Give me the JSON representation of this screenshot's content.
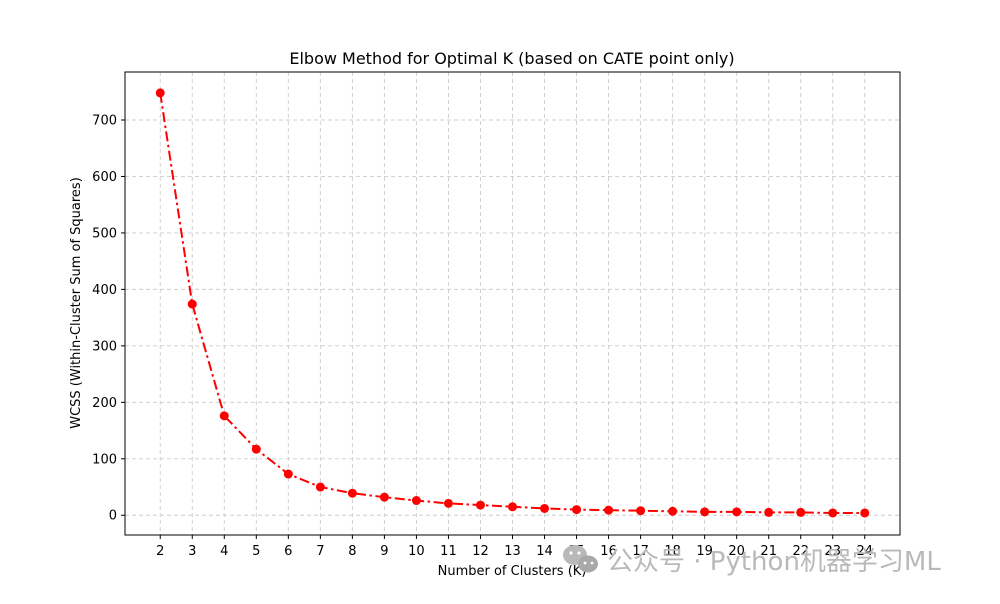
{
  "chart_data": {
    "type": "line",
    "title": "Elbow Method for Optimal K (based on CATE point only)",
    "xlabel": "Number of Clusters (K)",
    "ylabel": "WCSS (Within-Cluster Sum of Squares)",
    "x": [
      2,
      3,
      4,
      5,
      6,
      7,
      8,
      9,
      10,
      11,
      12,
      13,
      14,
      15,
      16,
      17,
      18,
      19,
      20,
      21,
      22,
      23,
      24
    ],
    "x_ticks": [
      2,
      3,
      4,
      5,
      6,
      7,
      8,
      9,
      10,
      11,
      12,
      13,
      14,
      15,
      16,
      17,
      18,
      19,
      20,
      21,
      22,
      23,
      24
    ],
    "y_ticks": [
      0,
      100,
      200,
      300,
      400,
      500,
      600,
      700
    ],
    "xlim": [
      0.9,
      25.1
    ],
    "ylim": [
      -35,
      785
    ],
    "series": [
      {
        "values": [
          748,
          374,
          176,
          117,
          73,
          50,
          39,
          32,
          26,
          21,
          18,
          15,
          12,
          10,
          9,
          8,
          7,
          6,
          6,
          5,
          5,
          4,
          4
        ],
        "color": "#ff0000",
        "line_style": "dash-dot",
        "marker": "circle"
      }
    ],
    "grid": true,
    "grid_style": "dashed"
  },
  "watermark": {
    "text": "公众号 · Python机器学习ML",
    "icon": "wechat-icon"
  }
}
